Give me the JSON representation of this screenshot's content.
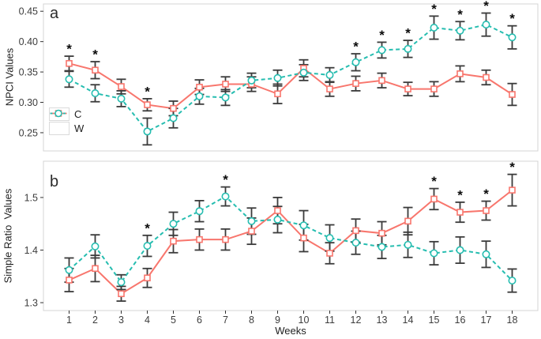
{
  "figure": {
    "background": "#ffffff",
    "xlabel": "Weeks",
    "colors": {
      "c_series": "#f8766d",
      "w_series": "#26bdb0",
      "error_bar": "#3b3b3b",
      "axis_text": "#3d3d3d",
      "panel_border": "#d4d4d4",
      "asterisk": "#0a0a0a"
    },
    "legend": {
      "position": "bottom-left-of-panel-a",
      "entries": [
        {
          "label": "C",
          "color": "#f8766d",
          "marker": "square",
          "line": "solid"
        },
        {
          "label": "W",
          "color": "#26bdb0",
          "marker": "circle",
          "line": "dashed"
        }
      ]
    }
  },
  "chart_data": [
    {
      "type": "line",
      "panel_label": "a",
      "ylabel": "NPCI Values",
      "xlabel": "Weeks",
      "x": [
        1,
        2,
        3,
        4,
        5,
        6,
        7,
        8,
        9,
        10,
        11,
        12,
        13,
        14,
        15,
        16,
        17,
        18
      ],
      "ytick_values": [
        0.25,
        0.3,
        0.35,
        0.4,
        0.45
      ],
      "ytick_labels": [
        "0.25",
        "0.30",
        "0.35",
        "0.40",
        "0.45"
      ],
      "ylim": [
        0.22,
        0.462
      ],
      "grid": false,
      "series": [
        {
          "name": "C",
          "marker": "square",
          "line": "solid",
          "values": [
            0.364,
            0.353,
            0.326,
            0.296,
            0.29,
            0.325,
            0.33,
            0.33,
            0.314,
            0.356,
            0.322,
            0.331,
            0.336,
            0.322,
            0.322,
            0.347,
            0.341,
            0.313
          ],
          "errors": [
            0.012,
            0.014,
            0.012,
            0.01,
            0.012,
            0.012,
            0.012,
            0.012,
            0.016,
            0.014,
            0.012,
            0.012,
            0.012,
            0.011,
            0.012,
            0.013,
            0.012,
            0.018
          ]
        },
        {
          "name": "W",
          "marker": "circle",
          "line": "dashed",
          "values": [
            0.338,
            0.315,
            0.306,
            0.252,
            0.274,
            0.31,
            0.308,
            0.336,
            0.34,
            0.349,
            0.345,
            0.366,
            0.386,
            0.388,
            0.423,
            0.418,
            0.428,
            0.407
          ],
          "errors": [
            0.013,
            0.014,
            0.013,
            0.022,
            0.016,
            0.013,
            0.013,
            0.012,
            0.013,
            0.013,
            0.012,
            0.014,
            0.013,
            0.014,
            0.019,
            0.015,
            0.019,
            0.019
          ]
        }
      ],
      "significance_asterisks": [
        {
          "week": 1,
          "above_series": "C"
        },
        {
          "week": 2,
          "above_series": "C"
        },
        {
          "week": 4,
          "above_series": "C"
        },
        {
          "week": 12,
          "above_series": "W"
        },
        {
          "week": 13,
          "above_series": "W"
        },
        {
          "week": 14,
          "above_series": "W"
        },
        {
          "week": 15,
          "above_series": "W"
        },
        {
          "week": 16,
          "above_series": "W"
        },
        {
          "week": 17,
          "above_series": "W"
        },
        {
          "week": 18,
          "above_series": "W"
        }
      ],
      "legend_visible": true
    },
    {
      "type": "line",
      "panel_label": "b",
      "ylabel": "Simple Ratio  Values",
      "xlabel": "Weeks",
      "x": [
        1,
        2,
        3,
        4,
        5,
        6,
        7,
        8,
        9,
        10,
        11,
        12,
        13,
        14,
        15,
        16,
        17,
        18
      ],
      "ytick_values": [
        1.3,
        1.4,
        1.5
      ],
      "ytick_labels": [
        "1.3",
        "1.4",
        "1.5"
      ],
      "ylim": [
        1.285,
        1.569
      ],
      "grid": false,
      "series": [
        {
          "name": "C",
          "marker": "square",
          "line": "solid",
          "values": [
            1.343,
            1.365,
            1.317,
            1.347,
            1.417,
            1.42,
            1.42,
            1.436,
            1.475,
            1.423,
            1.394,
            1.437,
            1.432,
            1.455,
            1.497,
            1.472,
            1.475,
            1.514
          ],
          "errors": [
            0.022,
            0.025,
            0.014,
            0.018,
            0.022,
            0.02,
            0.02,
            0.025,
            0.025,
            0.026,
            0.02,
            0.022,
            0.022,
            0.026,
            0.02,
            0.019,
            0.018,
            0.03
          ]
        },
        {
          "name": "W",
          "marker": "circle",
          "line": "dashed",
          "values": [
            1.362,
            1.407,
            1.339,
            1.408,
            1.45,
            1.474,
            1.502,
            1.455,
            1.458,
            1.447,
            1.423,
            1.414,
            1.406,
            1.41,
            1.394,
            1.4,
            1.392,
            1.342
          ],
          "errors": [
            0.023,
            0.022,
            0.014,
            0.02,
            0.022,
            0.02,
            0.018,
            0.025,
            0.025,
            0.028,
            0.025,
            0.022,
            0.022,
            0.024,
            0.022,
            0.025,
            0.025,
            0.022
          ]
        }
      ],
      "significance_asterisks": [
        {
          "week": 4,
          "above_series": "W"
        },
        {
          "week": 7,
          "above_series": "W"
        },
        {
          "week": 15,
          "above_series": "C"
        },
        {
          "week": 16,
          "above_series": "C"
        },
        {
          "week": 17,
          "above_series": "C"
        },
        {
          "week": 18,
          "above_series": "C"
        }
      ],
      "legend_visible": false
    }
  ]
}
